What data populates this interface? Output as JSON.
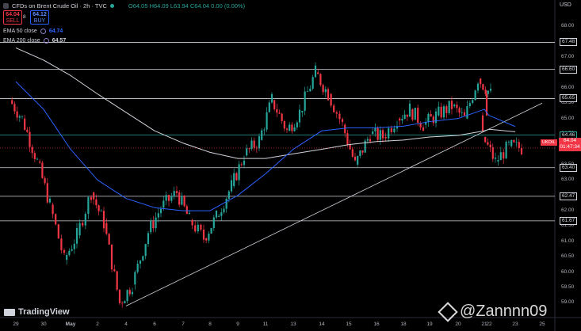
{
  "header": {
    "title": "CFDs on Brent Crude Oil · 2h · TVC",
    "ohlc": "O64.05 H64.09 L63.94 C64.04 0.00 (0.00%)"
  },
  "trade": {
    "sell_price": "64.04",
    "sell_label": "SELL",
    "spread": "8",
    "buy_price": "64.12",
    "buy_label": "BUY"
  },
  "indicators": [
    {
      "name": "EMA 50 close",
      "value": "64.74",
      "color": "#2962ff"
    },
    {
      "name": "EMA 200 close",
      "value": "64.57",
      "color": "#d1d4dc"
    }
  ],
  "axis": {
    "currency": "USD",
    "symbol_tag": "UKOIL",
    "current_price": "64.04",
    "countdown": "01:47:34"
  },
  "brand": {
    "name": "TradingView"
  },
  "watermark": {
    "text": "@Zannnn09"
  },
  "chart_data": {
    "type": "candlestick",
    "ylim": [
      58.6,
      68.6
    ],
    "y_ticks": [
      68.0,
      67.5,
      67.0,
      66.5,
      66.0,
      65.5,
      65.0,
      64.5,
      64.0,
      63.5,
      63.0,
      62.5,
      62.0,
      61.5,
      61.0,
      60.5,
      60.0,
      59.5,
      59.0
    ],
    "x_labels": [
      "29",
      "30",
      "May",
      "2",
      "4",
      "6",
      "7",
      "8",
      "9",
      "11",
      "13",
      "14",
      "15",
      "16",
      "18",
      "19",
      "20",
      "21",
      "22",
      "23",
      "25"
    ],
    "horizontal_levels": [
      {
        "value": 67.48,
        "label": "67.48",
        "color": "#d1d4dc"
      },
      {
        "value": 66.6,
        "label": "66.60",
        "color": "#d1d4dc"
      },
      {
        "value": 65.65,
        "label": "65.65",
        "color": "#d1d4dc"
      },
      {
        "value": 64.46,
        "label": "64.46",
        "color": "#26a69a"
      },
      {
        "value": 63.4,
        "label": "63.40",
        "color": "#d1d4dc"
      },
      {
        "value": 62.47,
        "label": "62.47",
        "color": "#d1d4dc"
      },
      {
        "value": 61.67,
        "label": "61.67",
        "color": "#d1d4dc"
      }
    ],
    "trendline": {
      "from": {
        "x": "4",
        "y": 58.9
      },
      "to": {
        "x": "25",
        "y": 65.5
      }
    },
    "price_path": [
      {
        "x": "29",
        "y": 65.6
      },
      {
        "x": "29",
        "y": 65.0
      },
      {
        "x": "30",
        "y": 63.6
      },
      {
        "x": "30",
        "y": 62.2
      },
      {
        "x": "May",
        "y": 60.4
      },
      {
        "x": "May",
        "y": 61.2
      },
      {
        "x": "2",
        "y": 62.6
      },
      {
        "x": "2",
        "y": 61.6
      },
      {
        "x": "4",
        "y": 59.0
      },
      {
        "x": "4",
        "y": 59.6
      },
      {
        "x": "6",
        "y": 61.3
      },
      {
        "x": "6",
        "y": 62.1
      },
      {
        "x": "7",
        "y": 62.6
      },
      {
        "x": "7",
        "y": 61.7
      },
      {
        "x": "8",
        "y": 61.1
      },
      {
        "x": "8",
        "y": 61.8
      },
      {
        "x": "9",
        "y": 62.8
      },
      {
        "x": "9",
        "y": 63.8
      },
      {
        "x": "11",
        "y": 64.3
      },
      {
        "x": "11",
        "y": 65.6
      },
      {
        "x": "13",
        "y": 64.6
      },
      {
        "x": "13",
        "y": 65.2
      },
      {
        "x": "14",
        "y": 66.5
      },
      {
        "x": "14",
        "y": 65.8
      },
      {
        "x": "15",
        "y": 64.8
      },
      {
        "x": "15",
        "y": 63.5
      },
      {
        "x": "16",
        "y": 64.5
      },
      {
        "x": "16",
        "y": 64.4
      },
      {
        "x": "18",
        "y": 65.0
      },
      {
        "x": "18",
        "y": 65.3
      },
      {
        "x": "19",
        "y": 64.8
      },
      {
        "x": "19",
        "y": 65.1
      },
      {
        "x": "20",
        "y": 65.4
      },
      {
        "x": "20",
        "y": 65.0
      },
      {
        "x": "21",
        "y": 66.3
      },
      {
        "x": "21",
        "y": 65.8
      },
      {
        "x": "22",
        "y": 64.4
      },
      {
        "x": "22",
        "y": 63.6
      },
      {
        "x": "23",
        "y": 64.1
      },
      {
        "x": "23",
        "y": 64.04
      }
    ],
    "ema50": [
      {
        "x": "29",
        "y": 66.2
      },
      {
        "x": "30",
        "y": 65.3
      },
      {
        "x": "May",
        "y": 64.0
      },
      {
        "x": "2",
        "y": 63.0
      },
      {
        "x": "4",
        "y": 62.4
      },
      {
        "x": "6",
        "y": 62.1
      },
      {
        "x": "7",
        "y": 62.0
      },
      {
        "x": "8",
        "y": 62.0
      },
      {
        "x": "9",
        "y": 62.5
      },
      {
        "x": "11",
        "y": 63.2
      },
      {
        "x": "13",
        "y": 64.0
      },
      {
        "x": "14",
        "y": 64.6
      },
      {
        "x": "15",
        "y": 64.7
      },
      {
        "x": "16",
        "y": 64.7
      },
      {
        "x": "18",
        "y": 64.75
      },
      {
        "x": "19",
        "y": 64.9
      },
      {
        "x": "20",
        "y": 65.0
      },
      {
        "x": "21",
        "y": 65.3
      },
      {
        "x": "22",
        "y": 65.1
      },
      {
        "x": "23",
        "y": 64.74
      }
    ],
    "ema200": [
      {
        "x": "29",
        "y": 67.3
      },
      {
        "x": "30",
        "y": 66.9
      },
      {
        "x": "May",
        "y": 66.4
      },
      {
        "x": "2",
        "y": 65.8
      },
      {
        "x": "4",
        "y": 65.2
      },
      {
        "x": "6",
        "y": 64.6
      },
      {
        "x": "7",
        "y": 64.2
      },
      {
        "x": "8",
        "y": 63.9
      },
      {
        "x": "9",
        "y": 63.7
      },
      {
        "x": "11",
        "y": 63.7
      },
      {
        "x": "13",
        "y": 63.85
      },
      {
        "x": "14",
        "y": 64.0
      },
      {
        "x": "15",
        "y": 64.15
      },
      {
        "x": "16",
        "y": 64.25
      },
      {
        "x": "18",
        "y": 64.3
      },
      {
        "x": "19",
        "y": 64.4
      },
      {
        "x": "20",
        "y": 64.45
      },
      {
        "x": "21",
        "y": 64.6
      },
      {
        "x": "22",
        "y": 64.65
      },
      {
        "x": "23",
        "y": 64.57
      }
    ]
  }
}
